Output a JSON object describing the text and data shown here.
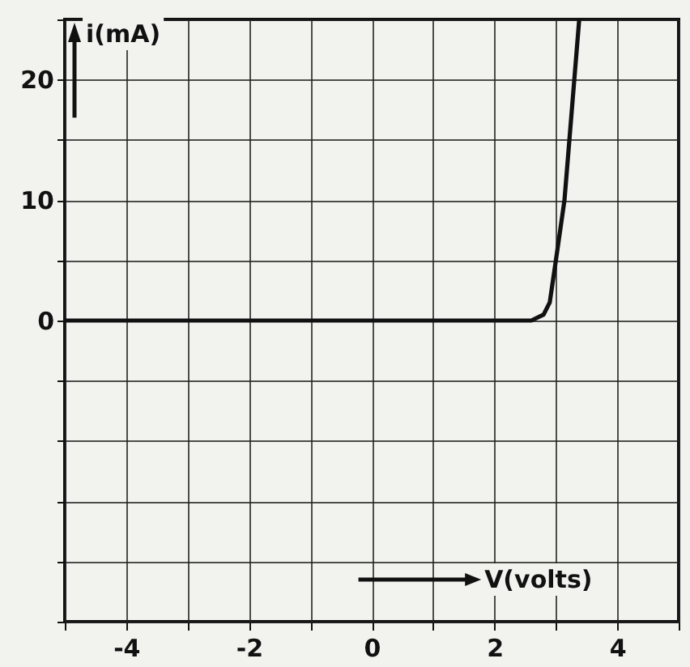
{
  "chart_data": {
    "type": "line",
    "xlabel": "V(volts)",
    "ylabel": "i(mA)",
    "x": [
      -5,
      0,
      2.6,
      2.8,
      2.9,
      3.0,
      3.14,
      3.3,
      3.38
    ],
    "series": [
      {
        "color": "#111111",
        "values": [
          0,
          0,
          0,
          0.5,
          1.5,
          5,
          10,
          20,
          25
        ]
      }
    ],
    "xlim": [
      -5,
      5
    ],
    "xticks": [
      {
        "value": -5,
        "label": null
      },
      -4,
      {
        "value": -3,
        "label": null
      },
      -2,
      {
        "value": -1,
        "label": null
      },
      0,
      {
        "value": 1,
        "label": null
      },
      2,
      {
        "value": 3,
        "label": null
      },
      4,
      {
        "value": 5,
        "label": null
      }
    ],
    "ylim": [
      -25,
      25
    ],
    "yticks": [
      {
        "value": -25,
        "label": null
      },
      {
        "value": -20,
        "label": null
      },
      {
        "value": -15,
        "label": null
      },
      {
        "value": -10,
        "label": null
      },
      {
        "value": -5,
        "label": null
      },
      0,
      {
        "value": 5,
        "label": null
      },
      10,
      {
        "value": 15,
        "label": null
      },
      20,
      {
        "value": 25,
        "label": null
      }
    ],
    "grid": true,
    "marker": "none",
    "line_style": "solid"
  }
}
